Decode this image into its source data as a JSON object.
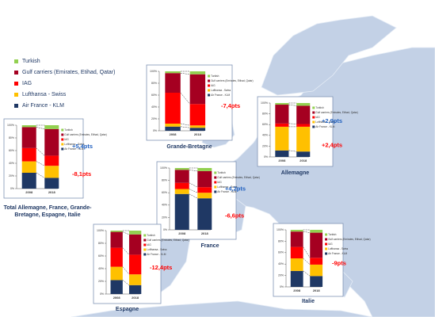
{
  "chart_data": [
    {
      "type": "stacked-bar",
      "title": "Total Allemagne, France, Grande-Bretagne, Espagne, Italie",
      "categories": [
        "2008",
        "2018"
      ],
      "series": [
        {
          "name": "Air France - KLM",
          "color": "#1f3864",
          "values": [
            25,
            17
          ]
        },
        {
          "name": "Lufthansa - Swiss",
          "color": "#ffc000",
          "values": [
            18,
            19
          ]
        },
        {
          "name": "IAG",
          "color": "#ff0000",
          "values": [
            21,
            16
          ]
        },
        {
          "name": "Gulf carriers (Emirates, Etihad, Qatar)",
          "color": "#a50021",
          "values": [
            33,
            42
          ]
        },
        {
          "name": "Turkish",
          "color": "#92d050",
          "values": [
            3,
            6
          ]
        }
      ],
      "ylim": [
        0,
        100
      ],
      "yticks": [
        {
          "value": 0,
          "label": "0%"
        },
        {
          "value": 20,
          "label": "20%"
        },
        {
          "value": 40,
          "label": "40%"
        },
        {
          "value": 60,
          "label": "60%"
        },
        {
          "value": 80,
          "label": "80%"
        },
        {
          "value": 100,
          "label": "100%"
        }
      ],
      "annotations": [
        {
          "text": "+5,4pts",
          "color": "#1f5fbf"
        },
        {
          "text": "-8,1pts",
          "color": "#ff0000"
        }
      ]
    },
    {
      "type": "stacked-bar",
      "title": "Grande-Bretagne",
      "categories": [
        "2008",
        "2018"
      ],
      "series": [
        {
          "name": "Air France - KLM",
          "color": "#1f3864",
          "values": [
            7,
            5
          ]
        },
        {
          "name": "Lufthansa - Swiss",
          "color": "#ffc000",
          "values": [
            5,
            4
          ]
        },
        {
          "name": "IAG",
          "color": "#ff0000",
          "values": [
            52,
            36
          ]
        },
        {
          "name": "Gulf carriers (Emirates, Etihad, Qatar)",
          "color": "#a50021",
          "values": [
            33,
            50
          ]
        },
        {
          "name": "Turkish",
          "color": "#92d050",
          "values": [
            3,
            5
          ]
        }
      ],
      "ylim": [
        0,
        100
      ],
      "yticks": [
        {
          "value": 0,
          "label": "0%"
        },
        {
          "value": 20,
          "label": "20%"
        },
        {
          "value": 40,
          "label": "40%"
        },
        {
          "value": 60,
          "label": "60%"
        },
        {
          "value": 80,
          "label": "80%"
        },
        {
          "value": 100,
          "label": "100%"
        }
      ],
      "annotations": [
        {
          "text": "-7,4pts",
          "color": "#ff0000"
        }
      ]
    },
    {
      "type": "stacked-bar",
      "title": "Allemagne",
      "categories": [
        "2008",
        "2018"
      ],
      "series": [
        {
          "name": "Air France - KLM",
          "color": "#1f3864",
          "values": [
            12,
            10
          ]
        },
        {
          "name": "Lufthansa - Swiss",
          "color": "#ffc000",
          "values": [
            44,
            46
          ]
        },
        {
          "name": "IAG",
          "color": "#ff0000",
          "values": [
            6,
            5
          ]
        },
        {
          "name": "Gulf carriers (Emirates, Etihad, Qatar)",
          "color": "#a50021",
          "values": [
            35,
            34
          ]
        },
        {
          "name": "Turkish",
          "color": "#92d050",
          "values": [
            3,
            5
          ]
        }
      ],
      "ylim": [
        0,
        100
      ],
      "yticks": [
        {
          "value": 0,
          "label": "0%"
        },
        {
          "value": 20,
          "label": "20%"
        },
        {
          "value": 40,
          "label": "40%"
        },
        {
          "value": 60,
          "label": "60%"
        },
        {
          "value": 80,
          "label": "80%"
        },
        {
          "value": 100,
          "label": "100%"
        }
      ],
      "annotations": [
        {
          "text": "+2,9pts",
          "color": "#1f5fbf"
        },
        {
          "text": "+2,4pts",
          "color": "#ff0000"
        }
      ]
    },
    {
      "type": "stacked-bar",
      "title": "France",
      "categories": [
        "2008",
        "2018"
      ],
      "series": [
        {
          "name": "Air France - KLM",
          "color": "#1f3864",
          "values": [
            58,
            51
          ]
        },
        {
          "name": "Lufthansa - Swiss",
          "color": "#ffc000",
          "values": [
            8,
            9
          ]
        },
        {
          "name": "IAG",
          "color": "#ff0000",
          "values": [
            10,
            9
          ]
        },
        {
          "name": "Gulf carriers (Emirates, Etihad, Qatar)",
          "color": "#a50021",
          "values": [
            21,
            26
          ]
        },
        {
          "name": "Turkish",
          "color": "#92d050",
          "values": [
            3,
            5
          ]
        }
      ],
      "ylim": [
        0,
        100
      ],
      "yticks": [
        {
          "value": 0,
          "label": "0%"
        },
        {
          "value": 20,
          "label": "20%"
        },
        {
          "value": 40,
          "label": "40%"
        },
        {
          "value": 60,
          "label": "60%"
        },
        {
          "value": 80,
          "label": "80%"
        },
        {
          "value": 100,
          "label": "100%"
        }
      ],
      "annotations": [
        {
          "text": "+4,2pts",
          "color": "#1f5fbf"
        },
        {
          "text": "-6,6pts",
          "color": "#ff0000"
        }
      ]
    },
    {
      "type": "stacked-bar",
      "title": "Espagne",
      "categories": [
        "2008",
        "2018"
      ],
      "series": [
        {
          "name": "Air France - KLM",
          "color": "#1f3864",
          "values": [
            22,
            14
          ]
        },
        {
          "name": "Lufthansa - Swiss",
          "color": "#ffc000",
          "values": [
            21,
            17
          ]
        },
        {
          "name": "IAG",
          "color": "#ff0000",
          "values": [
            30,
            31
          ]
        },
        {
          "name": "Gulf carriers (Emirates, Etihad, Qatar)",
          "color": "#a50021",
          "values": [
            25,
            32
          ]
        },
        {
          "name": "Turkish",
          "color": "#92d050",
          "values": [
            2,
            6
          ]
        }
      ],
      "ylim": [
        0,
        100
      ],
      "yticks": [
        {
          "value": 0,
          "label": "0%"
        },
        {
          "value": 20,
          "label": "20%"
        },
        {
          "value": 40,
          "label": "40%"
        },
        {
          "value": 60,
          "label": "60%"
        },
        {
          "value": 80,
          "label": "80%"
        },
        {
          "value": 100,
          "label": "100%"
        }
      ],
      "annotations": [
        {
          "text": "-12,4pts",
          "color": "#ff0000"
        }
      ]
    },
    {
      "type": "stacked-bar",
      "title": "Italie",
      "categories": [
        "2008",
        "2018"
      ],
      "series": [
        {
          "name": "Air France - KLM",
          "color": "#1f3864",
          "values": [
            28,
            19
          ]
        },
        {
          "name": "Lufthansa - Swiss",
          "color": "#ffc000",
          "values": [
            22,
            20
          ]
        },
        {
          "name": "IAG",
          "color": "#ff0000",
          "values": [
            20,
            12
          ]
        },
        {
          "name": "Gulf carriers (Emirates, Etihad, Qatar)",
          "color": "#a50021",
          "values": [
            27,
            44
          ]
        },
        {
          "name": "Turkish",
          "color": "#92d050",
          "values": [
            3,
            5
          ]
        }
      ],
      "ylim": [
        0,
        100
      ],
      "yticks": [
        {
          "value": 0,
          "label": "0%"
        },
        {
          "value": 20,
          "label": "20%"
        },
        {
          "value": 40,
          "label": "40%"
        },
        {
          "value": 60,
          "label": "60%"
        },
        {
          "value": 80,
          "label": "80%"
        },
        {
          "value": 100,
          "label": "100%"
        }
      ],
      "annotations": [
        {
          "text": "-9pts",
          "color": "#ff0000"
        }
      ]
    }
  ]
}
